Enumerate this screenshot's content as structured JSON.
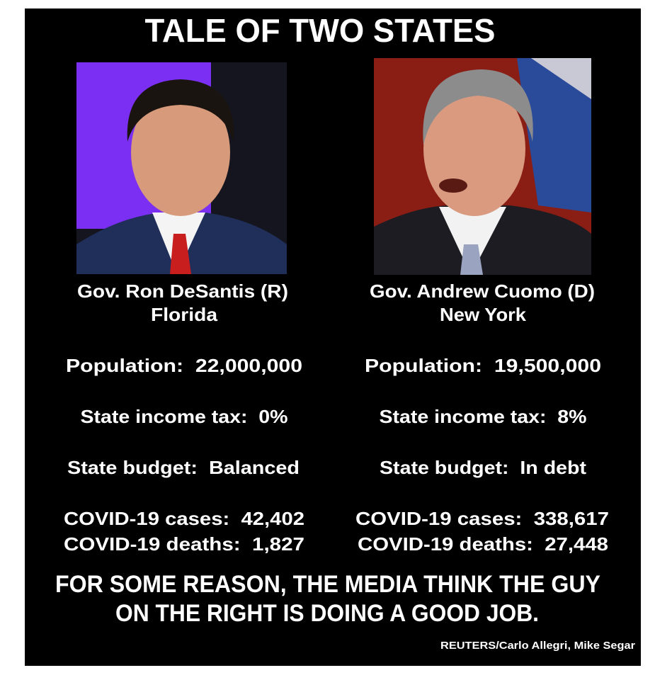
{
  "title": "TALE OF TWO STATES",
  "columns": [
    {
      "name": "Gov. Ron DeSantis (R)",
      "state": "Florida",
      "stats": [
        "Population:  22,000,000",
        "State income tax:  0%",
        "State budget:  Balanced",
        "COVID-19 cases:  42,402",
        "COVID-19 deaths:  1,827"
      ]
    },
    {
      "name": "Gov. Andrew Cuomo (D)",
      "state": "New York",
      "stats": [
        "Population:  19,500,000",
        "State income tax:  8%",
        "State budget:  In debt",
        "COVID-19 cases:  338,617",
        "COVID-19 deaths:  27,448"
      ]
    }
  ],
  "footer": [
    "FOR SOME REASON, THE MEDIA THINK THE GUY",
    "ON THE RIGHT IS DOING A GOOD JOB."
  ],
  "credit": "REUTERS/Carlo Allegri, Mike Segar"
}
